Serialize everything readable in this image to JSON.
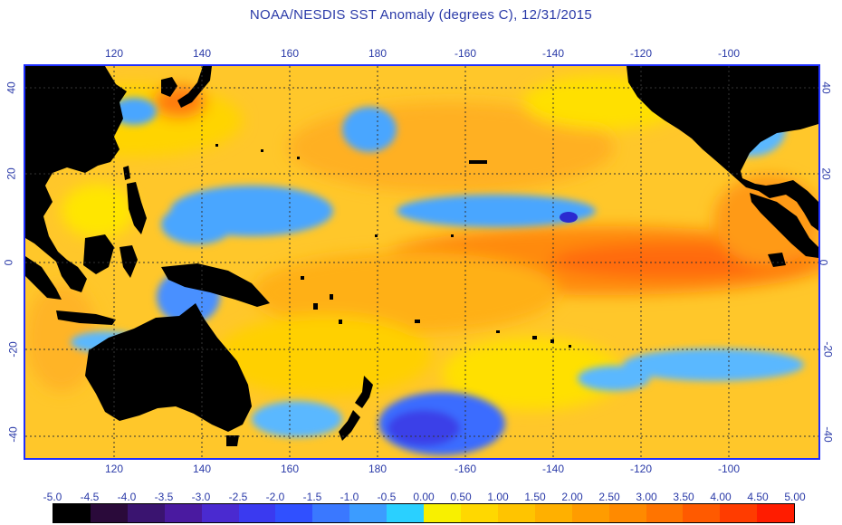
{
  "title": "NOAA/NESDIS SST Anomaly (degrees C), 12/31/2015",
  "lon_labels": [
    "120",
    "140",
    "160",
    "180",
    "-160",
    "-140",
    "-120",
    "-100"
  ],
  "lat_labels": [
    "40",
    "20",
    "0",
    "-20",
    "-40"
  ],
  "colorbar": {
    "labels": [
      "-5.0",
      "-4.5",
      "-4.0",
      "-3.5",
      "-3.0",
      "-2.5",
      "-2.0",
      "-1.5",
      "-1.0",
      "-0.5",
      "0.00",
      "0.50",
      "1.00",
      "1.50",
      "2.00",
      "2.50",
      "3.00",
      "3.50",
      "4.00",
      "4.50",
      "5.00"
    ],
    "colors": [
      "#000000",
      "#2a0a3a",
      "#3a1470",
      "#4a1aa0",
      "#4a2ad0",
      "#3a3af0",
      "#3050ff",
      "#3a78ff",
      "#3c9cff",
      "#2ad0ff",
      "#f8f000",
      "#ffd800",
      "#ffc400",
      "#ffb000",
      "#ff9c00",
      "#ff8a00",
      "#ff7400",
      "#ff5a00",
      "#ff3c00",
      "#ff1c00"
    ]
  },
  "colors": {
    "land": "#000000",
    "ocean_base": "#ffc72a",
    "cool": "#4aa6ff",
    "warm": "#ff7a10",
    "grid": "#333333",
    "text": "#2a3aa8",
    "frame": "#1f2fff"
  }
}
